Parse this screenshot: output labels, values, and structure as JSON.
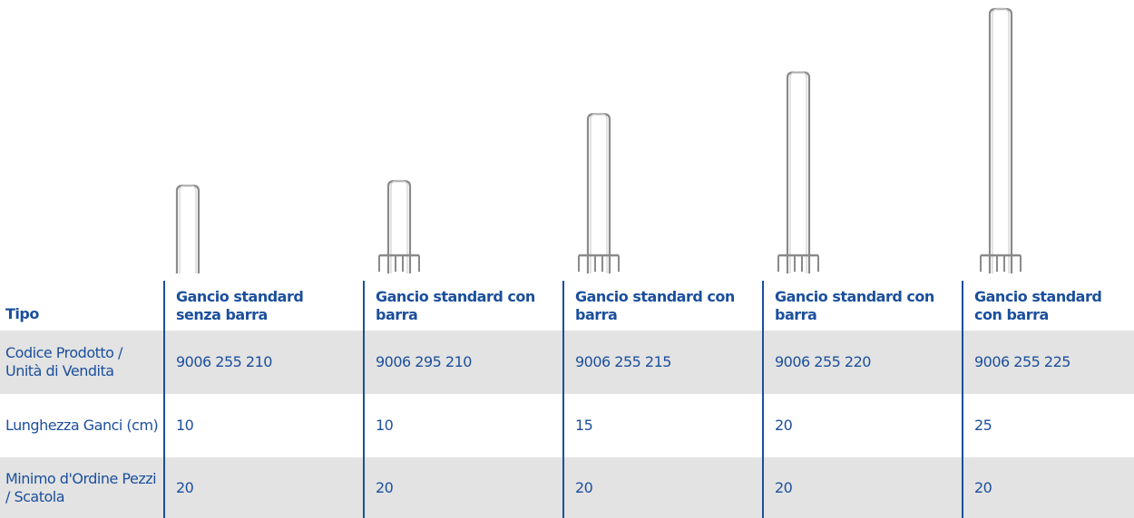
{
  "table": {
    "header": [
      "Tipo",
      "Gancio standard senza barra",
      "Gancio standard con barra",
      "Gancio standard con barra",
      "Gancio standard con barra",
      "Gancio standard con barra"
    ],
    "rows": [
      [
        "Codice Prodotto / Unità di Vendita",
        "9006 255 210",
        "9006 295 210",
        "9006 255 215",
        "9006 255 220",
        "9006 255 225"
      ],
      [
        "Lunghezza Ganci (cm)",
        "10",
        "10",
        "15",
        "20",
        "25"
      ],
      [
        "Minimo d'Ordine Pezzi / Scatola",
        "20",
        "20",
        "20",
        "20",
        "20"
      ]
    ]
  }
}
